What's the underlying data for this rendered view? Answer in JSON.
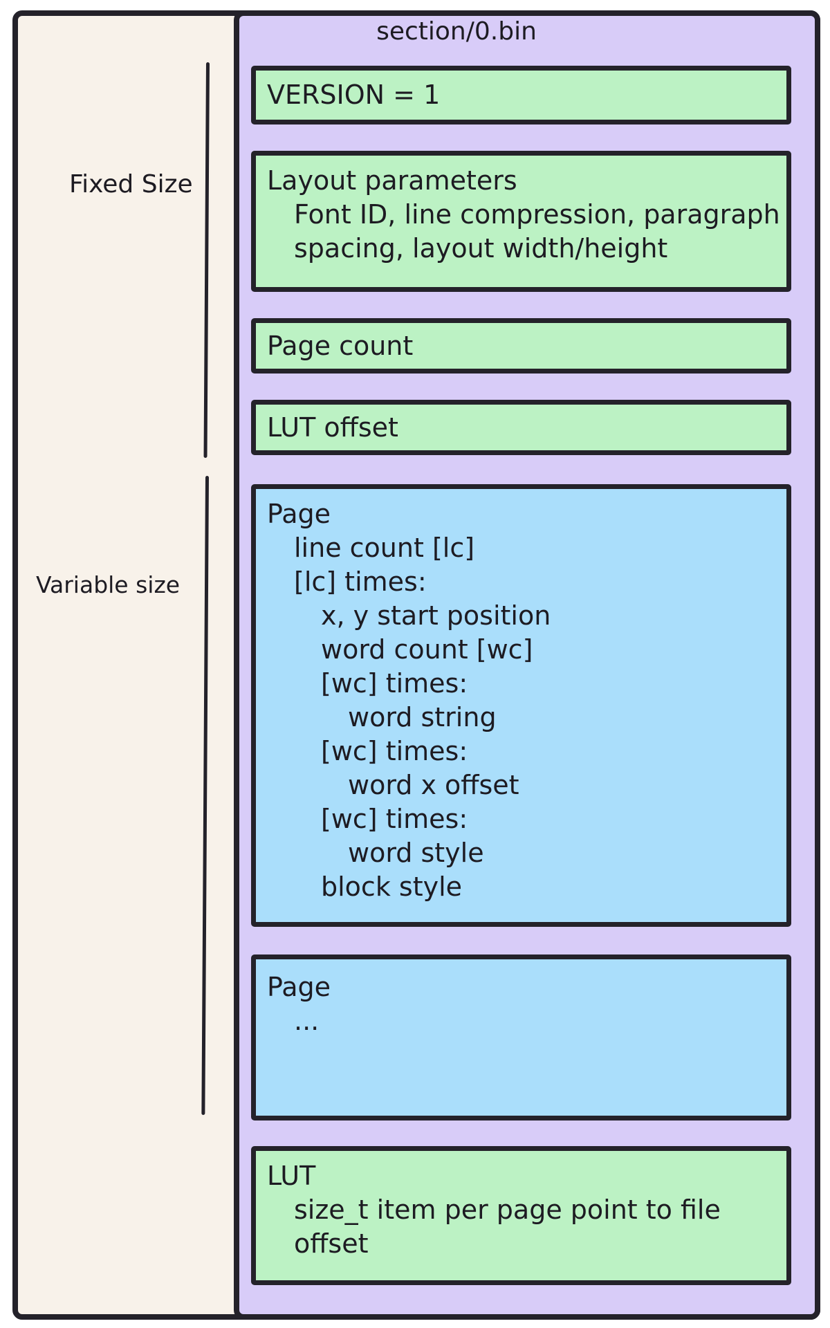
{
  "figure": {
    "title": "section/0.bin",
    "left_labels": {
      "fixed": "Fixed Size",
      "variable": "Variable size"
    },
    "colors": {
      "page_background": "#ffffff",
      "outer_fill_cream": "#f8f2ea",
      "panel_purple": "#d8ccf8",
      "box_green": "#bcf2c4",
      "box_blue": "#aadefb",
      "stroke": "#24222a"
    },
    "boxes": {
      "version": {
        "lines": [
          {
            "text": "VERSION = 1",
            "indent": 0
          }
        ]
      },
      "layout_params": {
        "lines": [
          {
            "text": "Layout parameters",
            "indent": 0
          },
          {
            "text": "Font ID, line compression, paragraph",
            "indent": 1
          },
          {
            "text": "spacing, layout width/height",
            "indent": 1
          }
        ]
      },
      "page_count": {
        "lines": [
          {
            "text": "Page count",
            "indent": 0
          }
        ]
      },
      "lut_offset": {
        "lines": [
          {
            "text": "LUT offset",
            "indent": 0
          }
        ]
      },
      "page_detail": {
        "lines": [
          {
            "text": "Page",
            "indent": 0
          },
          {
            "text": "line count [lc]",
            "indent": 1
          },
          {
            "text": "[lc] times:",
            "indent": 1
          },
          {
            "text": "x, y start position",
            "indent": 2
          },
          {
            "text": "word count [wc]",
            "indent": 2
          },
          {
            "text": "[wc] times:",
            "indent": 2
          },
          {
            "text": "word string",
            "indent": 3
          },
          {
            "text": "[wc] times:",
            "indent": 2
          },
          {
            "text": "word x offset",
            "indent": 3
          },
          {
            "text": "[wc] times:",
            "indent": 2
          },
          {
            "text": "word style",
            "indent": 3
          },
          {
            "text": "block style",
            "indent": 2
          }
        ]
      },
      "page_ellipsis": {
        "lines": [
          {
            "text": "Page",
            "indent": 0
          },
          {
            "text": "...",
            "indent": 1
          }
        ]
      },
      "lut": {
        "lines": [
          {
            "text": "LUT",
            "indent": 0
          },
          {
            "text": "size_t item per page point to file",
            "indent": 1
          },
          {
            "text": "offset",
            "indent": 1
          }
        ]
      }
    }
  }
}
